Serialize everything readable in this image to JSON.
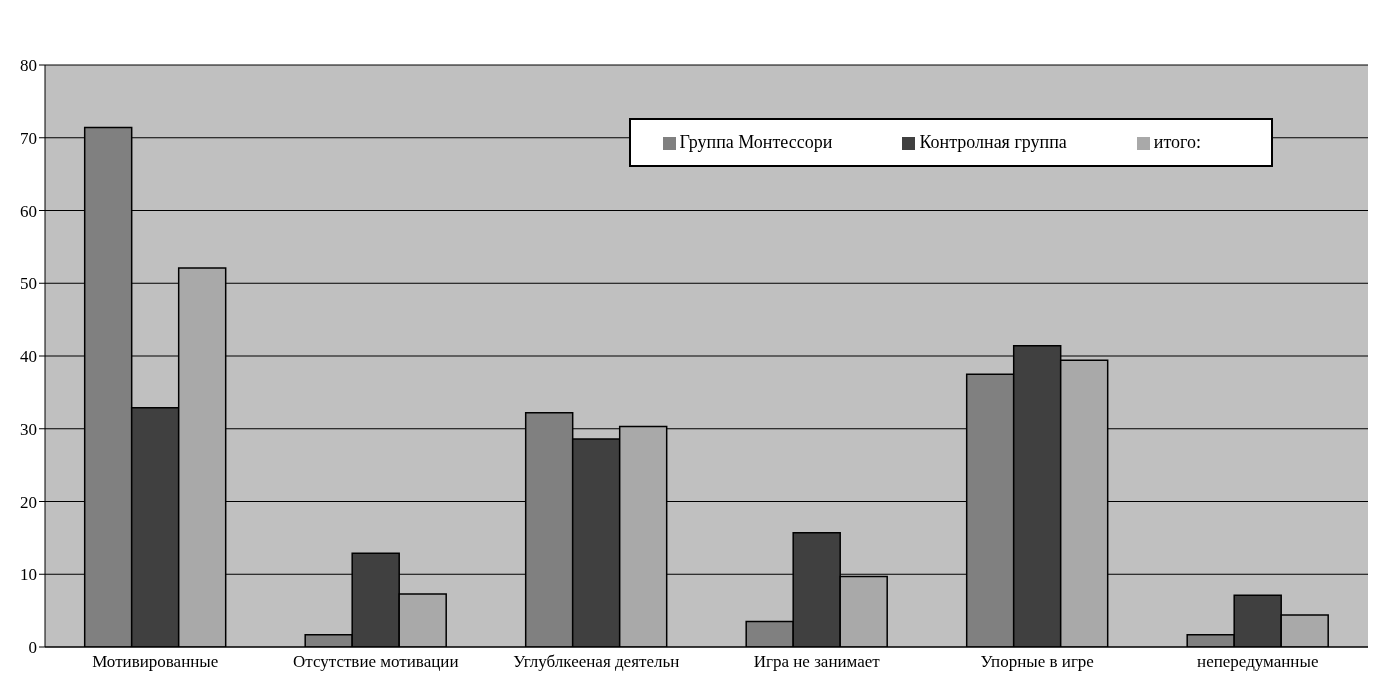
{
  "chart_data": {
    "type": "bar",
    "categories": [
      "Мотивированные",
      "Отсутствие мотивации",
      "Углублкееная деятельн",
      "Игра не занимает",
      "Упорные в игре",
      "непередуманные"
    ],
    "series": [
      {
        "name": "Группа Монтессори",
        "color": "#808080",
        "values": [
          71.4,
          1.7,
          32.2,
          3.5,
          37.5,
          1.7
        ]
      },
      {
        "name": "Контролная группа",
        "color": "#404040",
        "values": [
          32.9,
          12.9,
          28.6,
          15.7,
          41.4,
          7.1
        ]
      },
      {
        "name": "итого:",
        "color": "#a9a9a9",
        "values": [
          52.1,
          7.3,
          30.3,
          9.7,
          39.4,
          4.4
        ]
      }
    ],
    "ylim": [
      0,
      80
    ],
    "yticks": [
      0,
      10,
      20,
      30,
      40,
      50,
      60,
      70,
      80
    ],
    "grid": "y",
    "legend": "top right"
  }
}
